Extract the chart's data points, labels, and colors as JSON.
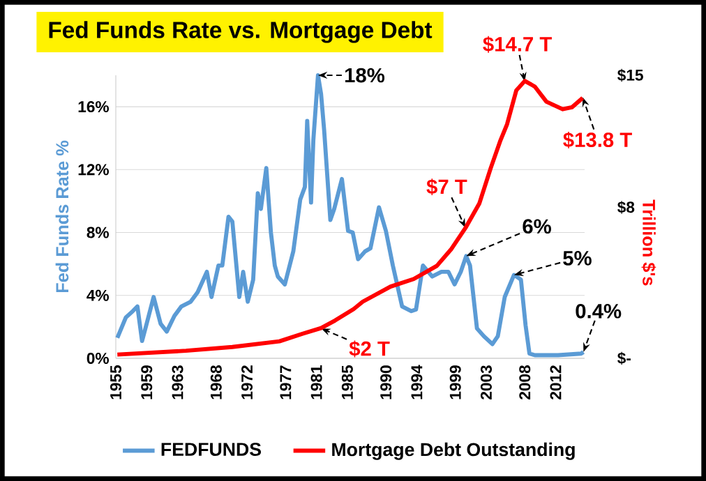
{
  "chart_data": {
    "type": "line",
    "title": "Fed Funds Rate vs. Mortgage Debt",
    "ylabel": "Fed Funds Rate %",
    "y2label": "Trillion $'s",
    "xlim": [
      1955,
      2015.75
    ],
    "xticks": [
      1955,
      1959,
      1963,
      1968,
      1972,
      1977,
      1981,
      1985,
      1990,
      1994,
      1999,
      2003,
      2008,
      2012
    ],
    "ylim": [
      0,
      18
    ],
    "yticks": [
      {
        "value": 0,
        "label": "0%"
      },
      {
        "value": 4,
        "label": "4%"
      },
      {
        "value": 8,
        "label": "8%"
      },
      {
        "value": 12,
        "label": "12%"
      },
      {
        "value": 16,
        "label": "16%"
      }
    ],
    "y2lim": [
      0,
      15
    ],
    "y2ticks": [
      {
        "value": 0,
        "label": "$-"
      },
      {
        "value": 8,
        "label": "$8"
      },
      {
        "value": 15,
        "label": "$15"
      }
    ],
    "grid": "y",
    "legend": "bottom",
    "line_style": "solid",
    "marker": "none",
    "series": [
      {
        "name": "FEDFUNDS",
        "color": "#5b9bd5",
        "x": [
          1955.2,
          1956.3,
          1957.2,
          1957.8,
          1958.4,
          1959.0,
          1959.9,
          1960.8,
          1961.6,
          1962.6,
          1963.5,
          1964.7,
          1965.6,
          1966.8,
          1967.4,
          1968.3,
          1968.8,
          1969.6,
          1970.1,
          1971.0,
          1971.5,
          1972.1,
          1972.8,
          1973.4,
          1973.8,
          1974.5,
          1975.1,
          1975.6,
          1976.0,
          1976.9,
          1978.0,
          1978.9,
          1979.5,
          1979.8,
          1980.3,
          1980.6,
          1981.2,
          1981.6,
          1982.0,
          1982.8,
          1983.3,
          1984.3,
          1985.1,
          1985.7,
          1986.4,
          1987.3,
          1988.0,
          1989.1,
          1990.0,
          1990.9,
          1992.1,
          1993.3,
          1993.9,
          1994.8,
          1996.0,
          1997.2,
          1998.1,
          1998.9,
          1999.7,
          2000.4,
          2000.9,
          2001.8,
          2002.7,
          2003.8,
          2004.5,
          2005.4,
          2006.6,
          2007.5,
          2008.1,
          2008.6,
          2009.3,
          2012.3,
          2015.3,
          2015.6
        ],
        "values": [
          1.3,
          2.6,
          3.0,
          3.3,
          1.1,
          2.2,
          3.9,
          2.2,
          1.7,
          2.7,
          3.3,
          3.6,
          4.2,
          5.5,
          3.9,
          5.9,
          5.9,
          9.0,
          8.7,
          3.9,
          5.5,
          3.6,
          5.0,
          10.5,
          9.5,
          12.1,
          8.0,
          5.9,
          5.2,
          4.7,
          6.8,
          10.1,
          10.9,
          15.1,
          9.9,
          13.9,
          18,
          16.8,
          14.5,
          8.8,
          9.5,
          11.4,
          8.1,
          8.0,
          6.3,
          6.8,
          7.0,
          9.6,
          8.1,
          5.9,
          3.3,
          3.0,
          3.1,
          5.9,
          5.2,
          5.5,
          5.5,
          4.7,
          5.5,
          6.5,
          5.9,
          1.9,
          1.4,
          0.9,
          1.4,
          3.9,
          5.3,
          5.0,
          2.1,
          0.3,
          0.2,
          0.2,
          0.3,
          0.4
        ]
      },
      {
        "name": "Mortgage Debt Outstanding",
        "color": "#ff0000",
        "axis": "y2",
        "x": [
          1955.2,
          1964.1,
          1970.1,
          1976.2,
          1979.2,
          1981.6,
          1983.4,
          1985.8,
          1987.0,
          1990.6,
          1993.6,
          1996.6,
          1998.5,
          2000.3,
          2002.1,
          2003.6,
          2004.8,
          2005.7,
          2006.9,
          2008.0,
          2009.3,
          2010.8,
          2012.9,
          2014.1,
          2015.5
        ],
        "values": [
          0.2,
          0.4,
          0.6,
          0.9,
          1.3,
          1.6,
          2.0,
          2.6,
          3.0,
          3.8,
          4.2,
          4.9,
          5.8,
          6.9,
          8.2,
          10.1,
          11.5,
          12.4,
          14.2,
          14.7,
          14.4,
          13.6,
          13.2,
          13.3,
          13.8
        ]
      }
    ],
    "annotations": [
      {
        "text": "18%",
        "x": 1981.2,
        "y": 18
      },
      {
        "text": "6%",
        "x": 2000.4,
        "y": 6.5
      },
      {
        "text": "5%",
        "x": 2006.6,
        "y": 5.3
      },
      {
        "text": "0.4%",
        "x": 2015.6,
        "y": 0.4
      },
      {
        "text": "$2 T",
        "x": 1981.6,
        "y": 1.9
      },
      {
        "text": "$7 T",
        "x": 2000.3,
        "y": 8.3
      },
      {
        "text": "$14.7 T",
        "x": 2008.0,
        "y": 17.6
      },
      {
        "text": "$13.8 T",
        "x": 2015.5,
        "y": 16.6
      }
    ]
  }
}
